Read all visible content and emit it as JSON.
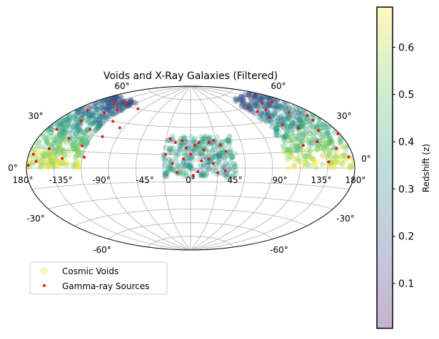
{
  "chart_data": [
    {
      "type": "scatter",
      "projection": "aitoff",
      "title": "Voids and X-Ray Galaxies (Filtered)",
      "xlim": [
        -180,
        180
      ],
      "ylim": [
        -90,
        90
      ],
      "grid": true,
      "legend_position": "bottom-left",
      "x_tick_labels": [
        "180°",
        "-135°",
        "-90°",
        "-45°",
        "0°",
        "45°",
        "90°",
        "135°",
        "180°"
      ],
      "y_tick_labels_left": [
        "60°",
        "30°",
        "0°",
        "-30°",
        "-60°"
      ],
      "y_tick_labels_right": [
        "60°",
        "30°",
        "0°",
        "-30°",
        "-60°"
      ],
      "legend": [
        "Cosmic Voids",
        "Gamma-ray Sources"
      ],
      "series": [
        {
          "name": "Cosmic Voids",
          "marker": "circle",
          "colormap": "viridis",
          "alpha": 0.3,
          "regions": [
            {
              "lon": [
                -180,
                -120
              ],
              "lat": [
                0,
                65
              ],
              "z_range": [
                0.2,
                0.7
              ]
            },
            {
              "lon": [
                -30,
                50
              ],
              "lat": [
                -10,
                35
              ],
              "z_range": [
                0.2,
                0.5
              ]
            },
            {
              "lon": [
                105,
                180
              ],
              "lat": [
                0,
                70
              ],
              "z_range": [
                0.2,
                0.7
              ]
            }
          ]
        },
        {
          "name": "Gamma-ray Sources",
          "color": "#e41a1c",
          "marker": "dot",
          "points": [
            [
              -175,
              10
            ],
            [
              -168,
              30
            ],
            [
              -160,
              15
            ],
            [
              -152,
              40
            ],
            [
              -145,
              25
            ],
            [
              -138,
              50
            ],
            [
              -130,
              35
            ],
            [
              -125,
              20
            ],
            [
              -128,
              55
            ],
            [
              -118,
              10
            ],
            [
              -112,
              45
            ],
            [
              -108,
              30
            ],
            [
              -100,
              60
            ],
            [
              -95,
              40
            ],
            [
              -170,
              5
            ],
            [
              -178,
              2
            ],
            [
              -165,
              48
            ],
            [
              -150,
              58
            ],
            [
              -142,
              8
            ],
            [
              -135,
              62
            ],
            [
              -25,
              32
            ],
            [
              -18,
              28
            ],
            [
              -10,
              30
            ],
            [
              -5,
              22
            ],
            [
              0,
              15
            ],
            [
              5,
              25
            ],
            [
              10,
              28
            ],
            [
              15,
              20
            ],
            [
              20,
              10
            ],
            [
              25,
              5
            ],
            [
              28,
              30
            ],
            [
              35,
              25
            ],
            [
              40,
              18
            ],
            [
              -20,
              5
            ],
            [
              -15,
              -5
            ],
            [
              -8,
              10
            ],
            [
              8,
              -4
            ],
            [
              12,
              8
            ],
            [
              30,
              -5
            ],
            [
              38,
              -3
            ],
            [
              22,
              28
            ],
            [
              -28,
              15
            ],
            [
              3,
              -8
            ],
            [
              110,
              60
            ],
            [
              115,
              55
            ],
            [
              120,
              48
            ],
            [
              125,
              40
            ],
            [
              132,
              55
            ],
            [
              140,
              35
            ],
            [
              148,
              22
            ],
            [
              155,
              48
            ],
            [
              160,
              30
            ],
            [
              165,
              15
            ],
            [
              170,
              42
            ],
            [
              175,
              8
            ],
            [
              178,
              25
            ],
            [
              130,
              20
            ],
            [
              145,
              60
            ],
            [
              152,
              5
            ],
            [
              162,
              58
            ],
            [
              168,
              38
            ]
          ]
        }
      ]
    },
    {
      "type": "colorbar",
      "label": "Redshift (z)",
      "colormap": "viridis",
      "alpha": 0.3,
      "range": [
        0.005,
        0.685
      ],
      "ticks": [
        0.1,
        0.2,
        0.3,
        0.4,
        0.5,
        0.6
      ],
      "tick_labels": [
        "0.1",
        "0.2",
        "0.3",
        "0.4",
        "0.5",
        "0.6"
      ]
    }
  ]
}
